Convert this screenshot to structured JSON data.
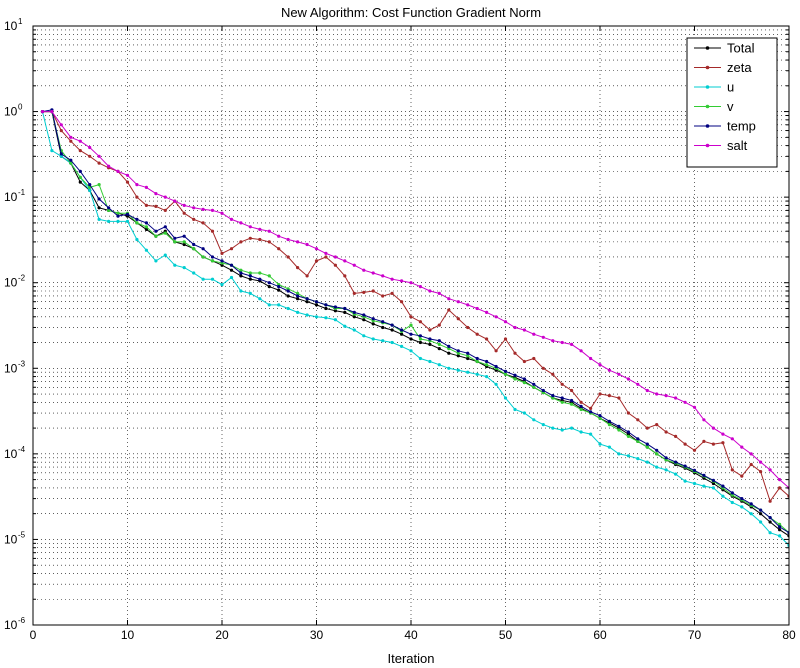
{
  "chart_data": {
    "type": "line",
    "title": "New Algorithm: Cost Function Gradient Norm",
    "xlabel": "Iteration",
    "ylabel": "",
    "xlim": [
      0,
      80
    ],
    "ylim": [
      1e-06,
      10
    ],
    "yscale": "log",
    "grid": true,
    "legend_position": "top-right",
    "x_ticks": [
      "0",
      "10",
      "20",
      "30",
      "40",
      "50",
      "60",
      "70",
      "80"
    ],
    "y_ticks": [
      {
        "base": "10",
        "exp": "1",
        "value": 10
      },
      {
        "base": "10",
        "exp": "0",
        "value": 1
      },
      {
        "base": "10",
        "exp": "-1",
        "value": 0.1
      },
      {
        "base": "10",
        "exp": "-2",
        "value": 0.01
      },
      {
        "base": "10",
        "exp": "-3",
        "value": 0.001
      },
      {
        "base": "10",
        "exp": "-4",
        "value": 0.0001
      },
      {
        "base": "10",
        "exp": "-5",
        "value": 1e-05
      },
      {
        "base": "10",
        "exp": "-6",
        "value": 1e-06
      }
    ],
    "x": [
      1,
      2,
      3,
      4,
      5,
      6,
      7,
      8,
      9,
      10,
      11,
      12,
      13,
      14,
      15,
      16,
      17,
      18,
      19,
      20,
      21,
      22,
      23,
      24,
      25,
      26,
      27,
      28,
      29,
      30,
      31,
      32,
      33,
      34,
      35,
      36,
      37,
      38,
      39,
      40,
      41,
      42,
      43,
      44,
      45,
      46,
      47,
      48,
      49,
      50,
      51,
      52,
      53,
      54,
      55,
      56,
      57,
      58,
      59,
      60,
      61,
      62,
      63,
      64,
      65,
      66,
      67,
      68,
      69,
      70,
      71,
      72,
      73,
      74,
      75,
      76,
      77,
      78,
      79,
      80
    ],
    "series": [
      {
        "name": "Total",
        "color": "#000000",
        "values": [
          1.0,
          1.0,
          0.3,
          0.25,
          0.15,
          0.12,
          0.075,
          0.07,
          0.065,
          0.06,
          0.05,
          0.042,
          0.035,
          0.04,
          0.03,
          0.028,
          0.025,
          0.02,
          0.018,
          0.016,
          0.014,
          0.012,
          0.011,
          0.0105,
          0.009,
          0.0082,
          0.007,
          0.0065,
          0.006,
          0.0055,
          0.005,
          0.0047,
          0.0045,
          0.004,
          0.0037,
          0.0033,
          0.003,
          0.0028,
          0.0025,
          0.0022,
          0.002,
          0.0019,
          0.0017,
          0.0015,
          0.0014,
          0.0013,
          0.0012,
          0.00105,
          0.00095,
          0.00085,
          0.00078,
          0.0007,
          0.0006,
          0.00052,
          0.00045,
          0.00042,
          0.0004,
          0.00034,
          0.0003,
          0.00026,
          0.00023,
          0.0002,
          0.00017,
          0.00014,
          0.00012,
          0.0001,
          8.5e-05,
          7.5e-05,
          6.8e-05,
          6e-05,
          5.2e-05,
          4.5e-05,
          3.8e-05,
          3.2e-05,
          2.8e-05,
          2.4e-05,
          2e-05,
          1.6e-05,
          1.3e-05,
          1.1e-05
        ]
      },
      {
        "name": "zeta",
        "color": "#a52a2a",
        "values": [
          1.0,
          1.0,
          0.6,
          0.45,
          0.35,
          0.3,
          0.25,
          0.22,
          0.2,
          0.15,
          0.1,
          0.08,
          0.078,
          0.07,
          0.09,
          0.065,
          0.055,
          0.05,
          0.04,
          0.022,
          0.025,
          0.03,
          0.033,
          0.032,
          0.03,
          0.025,
          0.02,
          0.015,
          0.012,
          0.018,
          0.02,
          0.016,
          0.012,
          0.0075,
          0.0077,
          0.008,
          0.007,
          0.0075,
          0.006,
          0.004,
          0.0035,
          0.0028,
          0.0032,
          0.0048,
          0.0038,
          0.003,
          0.0025,
          0.0022,
          0.0016,
          0.0022,
          0.0015,
          0.0012,
          0.0013,
          0.001,
          0.00085,
          0.00065,
          0.00055,
          0.0004,
          0.00034,
          0.0005,
          0.00048,
          0.00045,
          0.0003,
          0.00025,
          0.0002,
          0.00022,
          0.00018,
          0.00016,
          0.00013,
          0.00011,
          0.00014,
          0.00013,
          0.000135,
          6.5e-05,
          5.5e-05,
          7.5e-05,
          6.2e-05,
          2.8e-05,
          4e-05,
          3.2e-05
        ]
      },
      {
        "name": "u",
        "color": "#00ced1",
        "values": [
          1.0,
          0.35,
          0.3,
          0.25,
          0.17,
          0.12,
          0.055,
          0.052,
          0.052,
          0.052,
          0.032,
          0.024,
          0.018,
          0.021,
          0.016,
          0.015,
          0.013,
          0.011,
          0.011,
          0.0095,
          0.0115,
          0.008,
          0.0075,
          0.0065,
          0.0055,
          0.0055,
          0.005,
          0.0045,
          0.0042,
          0.004,
          0.0039,
          0.0037,
          0.0031,
          0.0028,
          0.0024,
          0.0022,
          0.0021,
          0.002,
          0.0018,
          0.0016,
          0.0013,
          0.0012,
          0.0011,
          0.001,
          0.00095,
          0.0009,
          0.00085,
          0.0008,
          0.00065,
          0.00045,
          0.00033,
          0.0003,
          0.00025,
          0.00022,
          0.0002,
          0.00019,
          0.0002,
          0.00018,
          0.00017,
          0.00013,
          0.00012,
          0.0001,
          9.5e-05,
          8.8e-05,
          8e-05,
          7e-05,
          6.5e-05,
          5.8e-05,
          4.8e-05,
          4.5e-05,
          4.2e-05,
          4e-05,
          3.2e-05,
          2.7e-05,
          2.4e-05,
          2e-05,
          1.6e-05,
          1.2e-05,
          1.1e-05,
          8.5e-06
        ]
      },
      {
        "name": "v",
        "color": "#33cc33",
        "values": [
          1.0,
          1.0,
          0.35,
          0.25,
          0.17,
          0.13,
          0.14,
          0.07,
          0.065,
          0.065,
          0.05,
          0.045,
          0.035,
          0.038,
          0.03,
          0.03,
          0.025,
          0.02,
          0.018,
          0.017,
          0.016,
          0.014,
          0.013,
          0.013,
          0.012,
          0.0095,
          0.0085,
          0.0075,
          0.0065,
          0.006,
          0.0055,
          0.005,
          0.005,
          0.0043,
          0.004,
          0.0036,
          0.0034,
          0.0032,
          0.0027,
          0.0032,
          0.0022,
          0.0021,
          0.0019,
          0.0017,
          0.0015,
          0.0014,
          0.0012,
          0.0011,
          0.001,
          0.00085,
          0.00075,
          0.00068,
          0.0006,
          0.00052,
          0.00045,
          0.0004,
          0.00038,
          0.00033,
          0.0003,
          0.00026,
          0.00022,
          0.00019,
          0.00016,
          0.00014,
          0.00012,
          0.0001,
          8.5e-05,
          7.8e-05,
          7e-05,
          6.2e-05,
          5.5e-05,
          4.8e-05,
          4e-05,
          3.3e-05,
          2.9e-05,
          2.5e-05,
          2.2e-05,
          1.8e-05,
          1.5e-05,
          1.2e-05
        ]
      },
      {
        "name": "temp",
        "color": "#000080",
        "values": [
          1.0,
          1.05,
          0.32,
          0.27,
          0.2,
          0.14,
          0.095,
          0.075,
          0.06,
          0.063,
          0.055,
          0.05,
          0.04,
          0.045,
          0.033,
          0.035,
          0.028,
          0.025,
          0.02,
          0.018,
          0.016,
          0.013,
          0.012,
          0.011,
          0.01,
          0.009,
          0.008,
          0.007,
          0.0065,
          0.006,
          0.0055,
          0.0052,
          0.005,
          0.0045,
          0.0042,
          0.0038,
          0.0035,
          0.0032,
          0.0028,
          0.0025,
          0.0024,
          0.0022,
          0.0021,
          0.0018,
          0.0016,
          0.0015,
          0.0013,
          0.0012,
          0.00105,
          0.00092,
          0.00083,
          0.00075,
          0.00065,
          0.00055,
          0.00048,
          0.00045,
          0.00042,
          0.00036,
          0.00031,
          0.00028,
          0.00024,
          0.00021,
          0.00018,
          0.00015,
          0.00013,
          0.00011,
          9e-05,
          8e-05,
          7.2e-05,
          6.4e-05,
          5.6e-05,
          4.9e-05,
          4.2e-05,
          3.5e-05,
          3e-05,
          2.6e-05,
          2.2e-05,
          1.8e-05,
          1.4e-05,
          1.2e-05
        ]
      },
      {
        "name": "salt",
        "color": "#cc00cc",
        "values": [
          1.0,
          1.0,
          0.7,
          0.5,
          0.45,
          0.38,
          0.3,
          0.23,
          0.2,
          0.18,
          0.14,
          0.13,
          0.11,
          0.1,
          0.09,
          0.08,
          0.075,
          0.072,
          0.07,
          0.065,
          0.055,
          0.05,
          0.045,
          0.042,
          0.04,
          0.035,
          0.032,
          0.03,
          0.028,
          0.025,
          0.022,
          0.02,
          0.018,
          0.016,
          0.014,
          0.013,
          0.012,
          0.011,
          0.0105,
          0.01,
          0.009,
          0.008,
          0.0075,
          0.0065,
          0.006,
          0.0055,
          0.005,
          0.0045,
          0.004,
          0.0035,
          0.003,
          0.0028,
          0.0025,
          0.0023,
          0.0021,
          0.002,
          0.0019,
          0.0016,
          0.0013,
          0.0011,
          0.00095,
          0.00085,
          0.00075,
          0.00065,
          0.00055,
          0.0005,
          0.00048,
          0.00045,
          0.0004,
          0.00035,
          0.00025,
          0.0002,
          0.00017,
          0.00015,
          0.00012,
          0.0001,
          8e-05,
          6.5e-05,
          5e-05,
          4e-05
        ]
      }
    ]
  }
}
